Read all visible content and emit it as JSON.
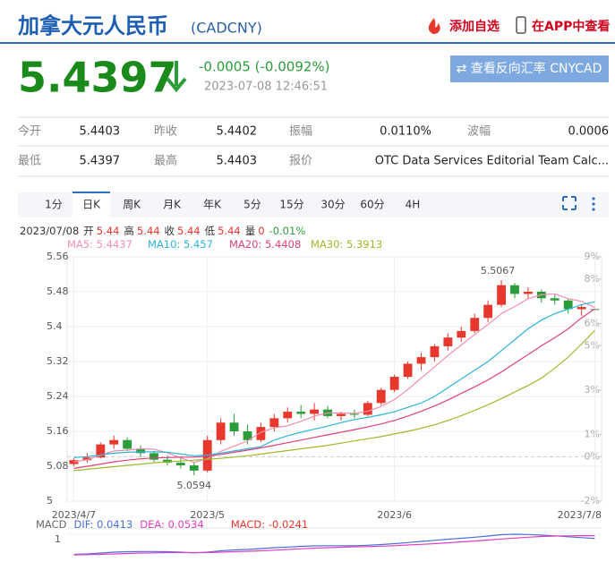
{
  "header": {
    "title": "加拿大元人民币",
    "code": "(CADCNY)",
    "add": "添加自选",
    "app": "在APP中查看"
  },
  "quote": {
    "price": "5.4397",
    "change": "-0.0005 (-0.0092%)",
    "time": "2023-07-08 12:46:51",
    "button": "⇄ 查看反向汇率 CNYCAD"
  },
  "table": {
    "rows": [
      [
        "今开",
        "5.4403",
        "昨收",
        "5.4402",
        "振幅",
        "0.0110%",
        "波幅",
        "0.0006"
      ],
      [
        "最低",
        "5.4397",
        "最高",
        "5.4403",
        "报价",
        "OTC Data Services Editorial Team Calc..."
      ]
    ]
  },
  "tabs": [
    "1分",
    "日K",
    "周K",
    "月K",
    "年K",
    "5分",
    "15分",
    "30分",
    "60分",
    "4H"
  ],
  "info": {
    "date": "2023/07/08",
    "items": [
      {
        "label": "开",
        "value": "5.44"
      },
      {
        "label": "高",
        "value": "5.44"
      },
      {
        "label": "收",
        "value": "5.44"
      },
      {
        "label": "低",
        "value": "5.44"
      },
      {
        "label": "量",
        "value": "0"
      }
    ],
    "change": "-0.01%"
  },
  "chart_data": {
    "type": "candlestick",
    "categories": [
      "2023/4/7",
      null,
      null,
      null,
      null,
      null,
      null,
      null,
      null,
      null,
      "2023/5",
      null,
      null,
      null,
      null,
      null,
      null,
      null,
      null,
      null,
      null,
      null,
      null,
      null,
      "2023/6",
      null,
      null,
      null,
      null,
      null,
      null,
      null,
      null,
      null,
      null,
      null,
      null,
      null,
      null,
      "2023/7/8"
    ],
    "candles": [
      [
        5.085,
        5.098,
        5.08,
        5.094
      ],
      [
        5.094,
        5.11,
        5.088,
        5.1
      ],
      [
        5.1,
        5.135,
        5.098,
        5.13
      ],
      [
        5.13,
        5.15,
        5.12,
        5.14
      ],
      [
        5.14,
        5.146,
        5.115,
        5.12
      ],
      [
        5.12,
        5.128,
        5.1,
        5.11
      ],
      [
        5.11,
        5.115,
        5.09,
        5.095
      ],
      [
        5.095,
        5.105,
        5.082,
        5.088
      ],
      [
        5.088,
        5.1,
        5.075,
        5.082
      ],
      [
        5.082,
        5.09,
        5.0594,
        5.07
      ],
      [
        5.07,
        5.15,
        5.066,
        5.14
      ],
      [
        5.14,
        5.19,
        5.13,
        5.18
      ],
      [
        5.18,
        5.2,
        5.15,
        5.16
      ],
      [
        5.16,
        5.175,
        5.13,
        5.14
      ],
      [
        5.14,
        5.18,
        5.135,
        5.17
      ],
      [
        5.17,
        5.2,
        5.16,
        5.19
      ],
      [
        5.19,
        5.215,
        5.18,
        5.205
      ],
      [
        5.205,
        5.22,
        5.19,
        5.2
      ],
      [
        5.2,
        5.225,
        5.185,
        5.21
      ],
      [
        5.21,
        5.218,
        5.19,
        5.195
      ],
      [
        5.195,
        5.205,
        5.185,
        5.2
      ],
      [
        5.2,
        5.21,
        5.19,
        5.198
      ],
      [
        5.198,
        5.23,
        5.195,
        5.225
      ],
      [
        5.225,
        5.26,
        5.22,
        5.255
      ],
      [
        5.255,
        5.29,
        5.25,
        5.285
      ],
      [
        5.285,
        5.32,
        5.28,
        5.315
      ],
      [
        5.315,
        5.34,
        5.3,
        5.33
      ],
      [
        5.33,
        5.36,
        5.32,
        5.355
      ],
      [
        5.355,
        5.385,
        5.345,
        5.375
      ],
      [
        5.375,
        5.4,
        5.365,
        5.39
      ],
      [
        5.39,
        5.43,
        5.385,
        5.42
      ],
      [
        5.42,
        5.46,
        5.41,
        5.45
      ],
      [
        5.45,
        5.5067,
        5.445,
        5.495
      ],
      [
        5.495,
        5.5,
        5.465,
        5.475
      ],
      [
        5.475,
        5.49,
        5.465,
        5.48
      ],
      [
        5.48,
        5.485,
        5.455,
        5.465
      ],
      [
        5.465,
        5.475,
        5.45,
        5.46
      ],
      [
        5.46,
        5.465,
        5.43,
        5.44
      ],
      [
        5.44,
        5.45,
        5.425,
        5.445
      ],
      [
        5.4403,
        5.4403,
        5.4397,
        5.4397
      ]
    ],
    "up_color": "#e8372c",
    "down_color": "#2a9d3a",
    "series": [
      {
        "name": "MA5",
        "color": "#f08fb0",
        "values": [
          5.09,
          5.095,
          5.105,
          5.115,
          5.117,
          5.12,
          5.119,
          5.111,
          5.099,
          5.089,
          5.097,
          5.114,
          5.126,
          5.138,
          5.158,
          5.168,
          5.173,
          5.183,
          5.195,
          5.202,
          5.202,
          5.201,
          5.206,
          5.217,
          5.233,
          5.256,
          5.282,
          5.308,
          5.334,
          5.358,
          5.382,
          5.405,
          5.43,
          5.446,
          5.464,
          5.473,
          5.475,
          5.464,
          5.458,
          5.4437
        ]
      },
      {
        "name": "MA10",
        "color": "#2bb5d8",
        "values": [
          5.1,
          5.102,
          5.106,
          5.11,
          5.112,
          5.113,
          5.113,
          5.112,
          5.108,
          5.104,
          5.106,
          5.11,
          5.115,
          5.12,
          5.125,
          5.14,
          5.15,
          5.158,
          5.165,
          5.172,
          5.18,
          5.187,
          5.192,
          5.198,
          5.205,
          5.215,
          5.225,
          5.24,
          5.26,
          5.28,
          5.3,
          5.32,
          5.345,
          5.37,
          5.395,
          5.415,
          5.43,
          5.44,
          5.45,
          5.457
        ]
      },
      {
        "name": "MA20",
        "color": "#e0407a",
        "values": [
          5.075,
          5.08,
          5.085,
          5.09,
          5.094,
          5.097,
          5.099,
          5.1,
          5.101,
          5.101,
          5.103,
          5.107,
          5.112,
          5.117,
          5.122,
          5.128,
          5.134,
          5.14,
          5.146,
          5.152,
          5.158,
          5.164,
          5.17,
          5.177,
          5.185,
          5.195,
          5.206,
          5.218,
          5.232,
          5.247,
          5.262,
          5.278,
          5.296,
          5.316,
          5.336,
          5.356,
          5.375,
          5.395,
          5.42,
          5.4408
        ]
      },
      {
        "name": "MA30",
        "color": "#9bbb2a",
        "values": [
          5.07,
          5.073,
          5.076,
          5.079,
          5.082,
          5.085,
          5.088,
          5.09,
          5.092,
          5.094,
          5.096,
          5.098,
          5.101,
          5.104,
          5.108,
          5.112,
          5.116,
          5.12,
          5.124,
          5.128,
          5.133,
          5.138,
          5.143,
          5.148,
          5.154,
          5.16,
          5.167,
          5.175,
          5.185,
          5.196,
          5.208,
          5.221,
          5.235,
          5.25,
          5.265,
          5.282,
          5.305,
          5.33,
          5.36,
          5.3913
        ]
      }
    ],
    "annotations": [
      "5.5067",
      "5.0594"
    ],
    "ylim": [
      5,
      5.56
    ],
    "yticks": [
      5,
      5.08,
      5.16,
      5.24,
      5.32,
      5.4,
      5.48,
      5.56
    ],
    "y2lim": [
      -2,
      9
    ],
    "y2ticks": [
      {
        "value": -2,
        "label": "-2%"
      },
      {
        "value": 0,
        "label": "0%"
      },
      {
        "value": 1,
        "label": "1%"
      },
      {
        "value": 3,
        "label": "3%"
      },
      {
        "value": 5,
        "label": "5%"
      },
      {
        "value": 6,
        "label": "6%"
      },
      {
        "value": 8,
        "label": "8%"
      },
      {
        "value": 9,
        "label": "9%"
      }
    ],
    "grid": true,
    "macd": {
      "title": "MACD",
      "histogram_name": "MACD",
      "histogram_value": -0.0241,
      "ylim": [
        -0.06,
        0.08
      ],
      "yticks": [
        {
          "value": 0.06,
          "label": "1"
        }
      ],
      "series": [
        {
          "name": "DIF",
          "color": "#4a6fd8",
          "values": [
            -0.03,
            -0.028,
            -0.024,
            -0.02,
            -0.018,
            -0.017,
            -0.017,
            -0.018,
            -0.02,
            -0.023,
            -0.02,
            -0.014,
            -0.01,
            -0.008,
            -0.004,
            0.0,
            0.003,
            0.006,
            0.008,
            0.009,
            0.009,
            0.009,
            0.011,
            0.014,
            0.018,
            0.023,
            0.028,
            0.033,
            0.038,
            0.042,
            0.047,
            0.052,
            0.058,
            0.06,
            0.059,
            0.056,
            0.053,
            0.049,
            0.045,
            0.0413
          ]
        },
        {
          "name": "DEA",
          "color": "#e040c0",
          "values": [
            -0.032,
            -0.031,
            -0.03,
            -0.028,
            -0.026,
            -0.024,
            -0.023,
            -0.022,
            -0.022,
            -0.022,
            -0.022,
            -0.02,
            -0.018,
            -0.016,
            -0.014,
            -0.011,
            -0.008,
            -0.005,
            -0.002,
            0.0,
            0.002,
            0.004,
            0.005,
            0.007,
            0.009,
            0.012,
            0.015,
            0.018,
            0.022,
            0.026,
            0.03,
            0.034,
            0.039,
            0.043,
            0.047,
            0.05,
            0.052,
            0.053,
            0.054,
            0.0534
          ]
        }
      ]
    }
  }
}
